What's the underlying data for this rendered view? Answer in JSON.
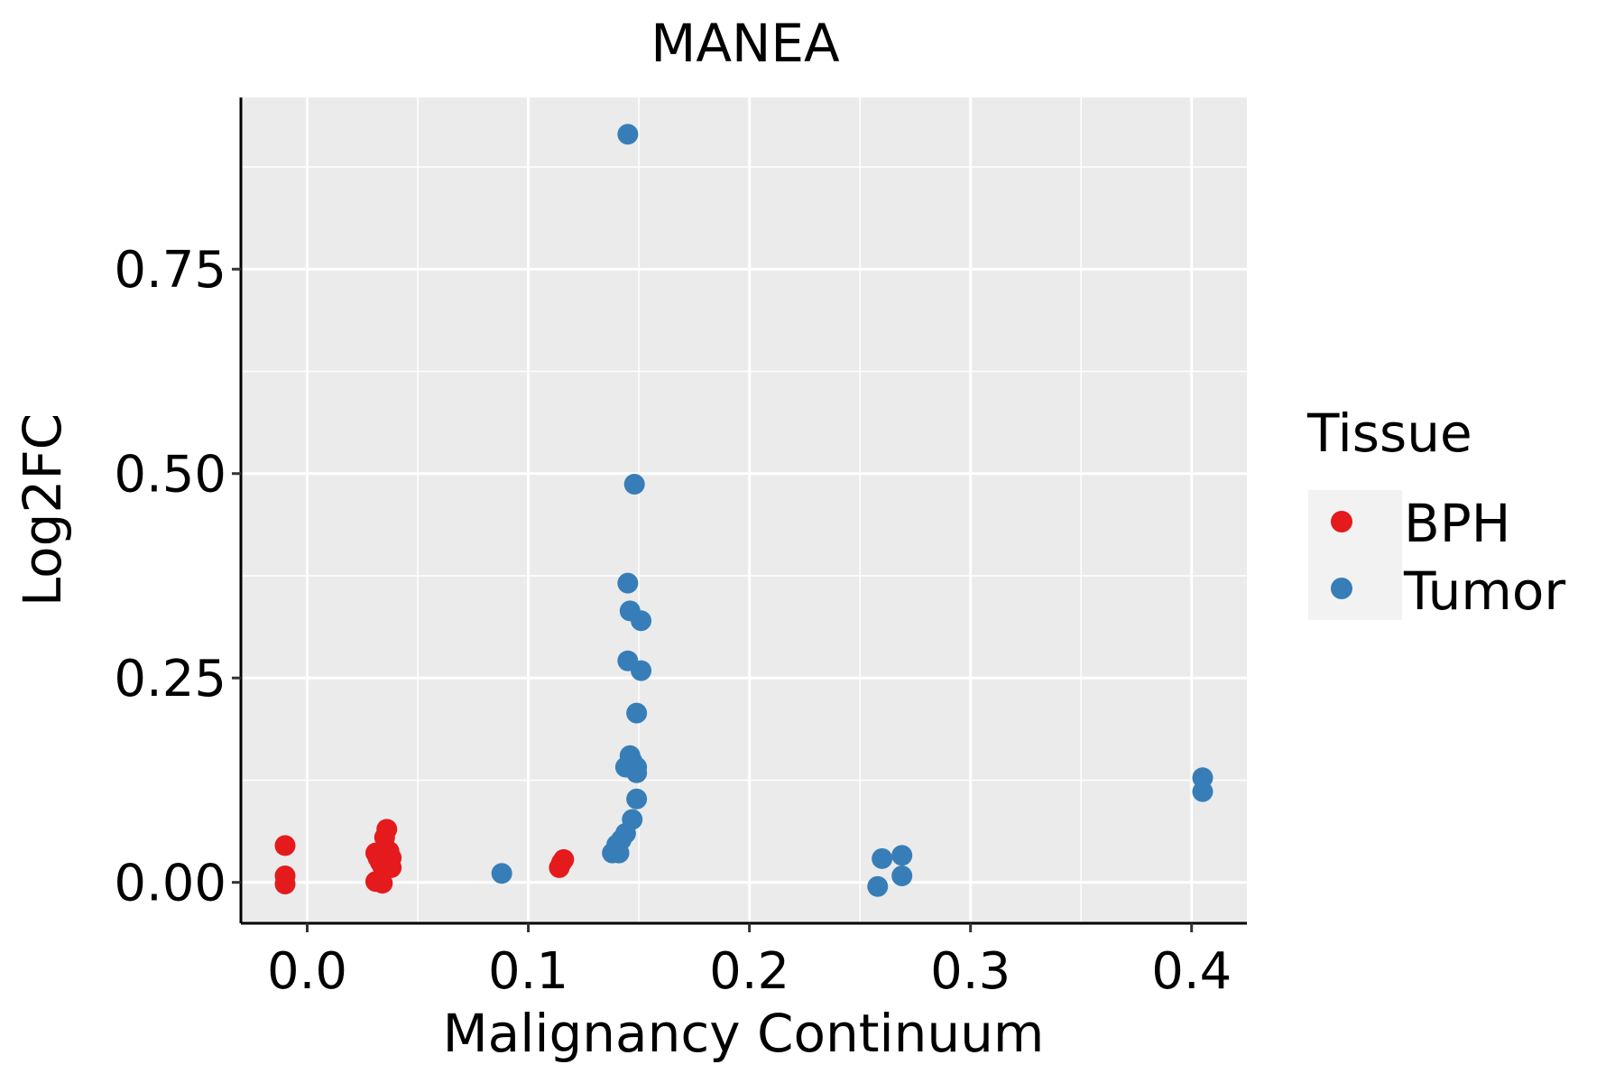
{
  "chart_data": {
    "type": "scatter",
    "title": "MANEA",
    "xlabel": "Malignancy Continuum",
    "ylabel": "Log2FC",
    "xlim": [
      -0.03,
      0.425
    ],
    "ylim": [
      -0.05,
      0.96
    ],
    "x_ticks": [
      0.0,
      0.1,
      0.2,
      0.3,
      0.4
    ],
    "x_tick_labels": [
      "0.0",
      "0.1",
      "0.2",
      "0.3",
      "0.4"
    ],
    "y_ticks": [
      0.0,
      0.25,
      0.5,
      0.75
    ],
    "y_tick_labels": [
      "0.00",
      "0.25",
      "0.50",
      "0.75"
    ],
    "grid": true,
    "background": "#EBEBEB",
    "legend": {
      "title": "Tissue",
      "position": "right",
      "entries": [
        {
          "name": "BPH",
          "color": "#E41A1C"
        },
        {
          "name": "Tumor",
          "color": "#377EB8"
        }
      ]
    },
    "series": [
      {
        "name": "BPH",
        "color": "#E41A1C",
        "points": [
          {
            "x": -0.01,
            "y": 0.045
          },
          {
            "x": -0.01,
            "y": 0.008
          },
          {
            "x": -0.01,
            "y": -0.002
          },
          {
            "x": 0.031,
            "y": 0.036
          },
          {
            "x": 0.032,
            "y": 0.03
          },
          {
            "x": 0.033,
            "y": 0.025
          },
          {
            "x": 0.031,
            "y": 0.001
          },
          {
            "x": 0.034,
            "y": -0.001
          },
          {
            "x": 0.034,
            "y": 0.02
          },
          {
            "x": 0.035,
            "y": 0.042
          },
          {
            "x": 0.035,
            "y": 0.055
          },
          {
            "x": 0.036,
            "y": 0.065
          },
          {
            "x": 0.037,
            "y": 0.038
          },
          {
            "x": 0.038,
            "y": 0.03
          },
          {
            "x": 0.038,
            "y": 0.018
          },
          {
            "x": 0.114,
            "y": 0.018
          },
          {
            "x": 0.115,
            "y": 0.024
          },
          {
            "x": 0.116,
            "y": 0.028
          }
        ]
      },
      {
        "name": "Tumor",
        "color": "#377EB8",
        "points": [
          {
            "x": 0.145,
            "y": 0.915
          },
          {
            "x": 0.148,
            "y": 0.487
          },
          {
            "x": 0.145,
            "y": 0.366
          },
          {
            "x": 0.146,
            "y": 0.332
          },
          {
            "x": 0.151,
            "y": 0.32
          },
          {
            "x": 0.145,
            "y": 0.271
          },
          {
            "x": 0.151,
            "y": 0.259
          },
          {
            "x": 0.149,
            "y": 0.207
          },
          {
            "x": 0.146,
            "y": 0.155
          },
          {
            "x": 0.147,
            "y": 0.148
          },
          {
            "x": 0.144,
            "y": 0.141
          },
          {
            "x": 0.149,
            "y": 0.141
          },
          {
            "x": 0.149,
            "y": 0.134
          },
          {
            "x": 0.149,
            "y": 0.102
          },
          {
            "x": 0.147,
            "y": 0.077
          },
          {
            "x": 0.144,
            "y": 0.06
          },
          {
            "x": 0.142,
            "y": 0.052
          },
          {
            "x": 0.14,
            "y": 0.046
          },
          {
            "x": 0.14,
            "y": 0.04
          },
          {
            "x": 0.138,
            "y": 0.036
          },
          {
            "x": 0.141,
            "y": 0.036
          },
          {
            "x": 0.088,
            "y": 0.011
          },
          {
            "x": 0.26,
            "y": 0.029
          },
          {
            "x": 0.258,
            "y": -0.005
          },
          {
            "x": 0.269,
            "y": 0.033
          },
          {
            "x": 0.269,
            "y": 0.008
          },
          {
            "x": 0.405,
            "y": 0.128
          },
          {
            "x": 0.405,
            "y": 0.111
          }
        ]
      }
    ]
  }
}
